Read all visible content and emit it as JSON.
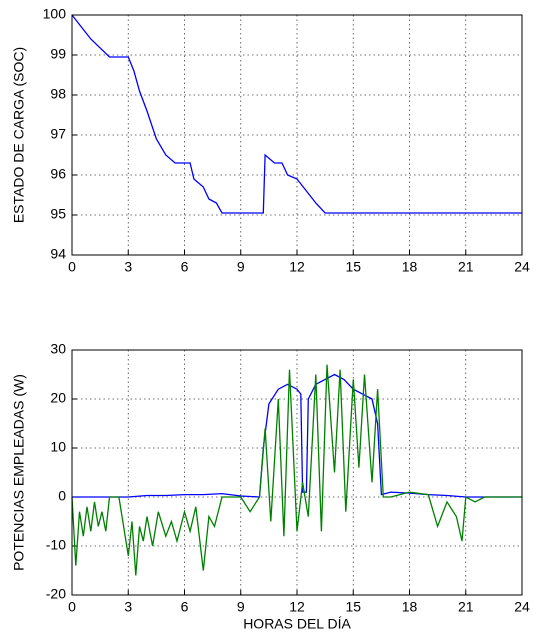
{
  "chart_data": [
    {
      "type": "line",
      "ylabel": "ESTADO DE CARGA (SOC)",
      "xlim": [
        0,
        24
      ],
      "xticks": [
        0,
        3,
        6,
        9,
        12,
        15,
        18,
        21,
        24
      ],
      "ylim": [
        94,
        100
      ],
      "yticks": [
        94,
        95,
        96,
        97,
        98,
        99,
        100
      ],
      "grid": true,
      "series": [
        {
          "color": "#0000ff",
          "x": [
            0,
            0.5,
            1,
            2,
            3,
            3.3,
            3.6,
            4,
            4.5,
            5,
            5.5,
            6.3,
            6.5,
            7,
            7.3,
            7.7,
            8,
            10.2,
            10.3,
            10.8,
            11.2,
            11.5,
            12,
            12.5,
            13,
            13.5,
            24
          ],
          "values": [
            100,
            99.7,
            99.4,
            98.95,
            98.95,
            98.6,
            98.1,
            97.6,
            96.9,
            96.5,
            96.3,
            96.3,
            95.9,
            95.7,
            95.4,
            95.3,
            95.05,
            95.05,
            96.5,
            96.3,
            96.3,
            96.0,
            95.9,
            95.6,
            95.3,
            95.05,
            95.05
          ]
        }
      ]
    },
    {
      "type": "line",
      "ylabel": "POTENCIAS EMPLEADAS (W)",
      "xlabel": "HORAS DEL DÍA",
      "xlim": [
        0,
        24
      ],
      "xticks": [
        0,
        3,
        6,
        9,
        12,
        15,
        18,
        21,
        24
      ],
      "ylim": [
        -20,
        30
      ],
      "yticks": [
        -20,
        -10,
        0,
        10,
        20,
        30
      ],
      "grid": true,
      "series": [
        {
          "color": "#0000ff",
          "x": [
            0,
            1,
            2,
            3,
            4,
            5,
            6,
            7,
            8,
            9,
            10,
            10.2,
            10.5,
            11,
            11.5,
            12,
            12.2,
            12.3,
            12.5,
            12.6,
            13,
            13.5,
            14,
            14.5,
            15,
            15.5,
            16,
            16.3,
            16.5,
            17,
            18,
            19,
            20,
            21,
            24
          ],
          "values": [
            0,
            0,
            0,
            0,
            0.3,
            0.3,
            0.5,
            0.5,
            0.7,
            0.2,
            0,
            10,
            19,
            22,
            23,
            22,
            21,
            1,
            1,
            20,
            23,
            24,
            25,
            24,
            22,
            21,
            20,
            15,
            0.5,
            1,
            0.8,
            0.5,
            0.3,
            0,
            0
          ]
        },
        {
          "color": "#008000",
          "x": [
            0,
            0.2,
            0.4,
            0.6,
            0.8,
            1.0,
            1.2,
            1.4,
            1.6,
            1.8,
            2.0,
            2.5,
            3.0,
            3.2,
            3.4,
            3.6,
            3.8,
            4.0,
            4.3,
            4.6,
            5.0,
            5.3,
            5.6,
            6.0,
            6.3,
            6.6,
            7.0,
            7.3,
            7.6,
            8.0,
            8.5,
            9.0,
            9.5,
            10.0,
            10.3,
            10.6,
            11.0,
            11.3,
            11.6,
            12.0,
            12.3,
            12.6,
            13.0,
            13.3,
            13.6,
            14.0,
            14.3,
            14.6,
            15.0,
            15.3,
            15.6,
            16.0,
            16.3,
            16.6,
            17.0,
            18.0,
            19.0,
            19.5,
            20.0,
            20.5,
            20.8,
            21.0,
            21.5,
            22.0,
            24
          ],
          "values": [
            0,
            -14,
            -3,
            -8,
            -2,
            -7,
            -1,
            -6,
            -3,
            -7,
            0,
            0,
            -12,
            -5,
            -16,
            -6,
            -9,
            -4,
            -10,
            -3,
            -8,
            -5,
            -9,
            -3,
            -7,
            -2,
            -15,
            -4,
            -6,
            0,
            0,
            0,
            -3,
            0,
            14,
            -5,
            20,
            -8,
            26,
            -7,
            3,
            -4,
            25,
            -7,
            27,
            5,
            26,
            -3,
            24,
            6,
            25,
            3,
            22,
            0,
            0,
            1,
            0.5,
            -6,
            -1,
            -4,
            -9,
            0,
            -1,
            0,
            0
          ]
        }
      ]
    }
  ]
}
